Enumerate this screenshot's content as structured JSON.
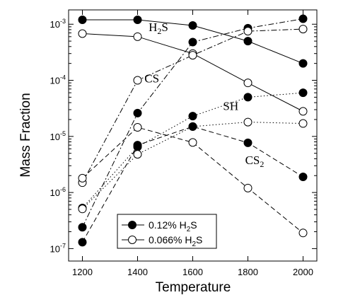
{
  "chart_data": {
    "type": "line",
    "xlabel": "Temperature",
    "ylabel": "Mass Fraction",
    "xlim": [
      1150,
      2050
    ],
    "ylim": [
      6e-08,
      0.0018
    ],
    "y_scale": "log",
    "x_ticks": [
      1200,
      1400,
      1600,
      1800,
      2000
    ],
    "x_tick_labels": [
      "1200",
      "1400",
      "1600",
      "1800",
      "2000"
    ],
    "y_ticks": [
      1e-07,
      1e-06,
      1e-05,
      0.0001,
      0.001
    ],
    "y_tick_labels": [
      {
        "base": "10",
        "exp": "-7"
      },
      {
        "base": "10",
        "exp": "-6"
      },
      {
        "base": "10",
        "exp": "-5"
      },
      {
        "base": "10",
        "exp": "-4"
      },
      {
        "base": "10",
        "exp": "-3"
      }
    ],
    "x": [
      1200,
      1400,
      1600,
      1800,
      2000
    ],
    "series": [
      {
        "species": "H2S",
        "marker": "filled",
        "dash": "solid",
        "values": [
          0.0012,
          0.0012,
          0.00095,
          0.0005,
          0.0002
        ]
      },
      {
        "species": "H2S",
        "marker": "open",
        "dash": "solid",
        "values": [
          0.00068,
          0.0006,
          0.0003,
          9e-05,
          2.8e-05
        ]
      },
      {
        "species": "CS",
        "marker": "filled",
        "dash": "dashdot",
        "values": [
          2.4e-07,
          2.6e-05,
          0.00048,
          0.00085,
          0.00125
        ]
      },
      {
        "species": "CS",
        "marker": "open",
        "dash": "dashdot",
        "values": [
          1.5e-06,
          0.0001,
          0.00028,
          0.00075,
          0.00082
        ]
      },
      {
        "species": "SH",
        "marker": "filled",
        "dash": "dotted",
        "values": [
          5.3e-07,
          6.5e-06,
          2.3e-05,
          5e-05,
          6e-05
        ]
      },
      {
        "species": "SH",
        "marker": "open",
        "dash": "dotted",
        "values": [
          5.1e-07,
          4.8e-06,
          1.5e-05,
          1.8e-05,
          1.7e-05
        ]
      },
      {
        "species": "CS2",
        "marker": "filled",
        "dash": "dashed",
        "values": [
          1.3e-07,
          7e-06,
          1.5e-05,
          7.7e-06,
          1.9e-06
        ]
      },
      {
        "species": "CS2",
        "marker": "open",
        "dash": "dashed",
        "values": [
          1.8e-06,
          1.45e-05,
          7.8e-06,
          1.2e-06,
          1.9e-07
        ]
      }
    ],
    "annotations": [
      {
        "base": "H",
        "sub": "2",
        "rest": "S",
        "x": 1440,
        "y": 0.00075
      },
      {
        "base": "CS",
        "sub": "",
        "rest": "",
        "x": 1425,
        "y": 9.2e-05
      },
      {
        "base": "SH",
        "sub": "",
        "rest": "",
        "x": 1710,
        "y": 2.95e-05
      },
      {
        "base": "CS",
        "sub": "2",
        "rest": "",
        "x": 1790,
        "y": 3.2e-06
      }
    ],
    "legend": {
      "placement": "bottom-center",
      "entries": [
        {
          "marker": "filled",
          "label": "0.12% H",
          "sub": "2",
          "rest": "S"
        },
        {
          "marker": "open",
          "label": "0.066% H",
          "sub": "2",
          "rest": "S"
        }
      ]
    }
  }
}
